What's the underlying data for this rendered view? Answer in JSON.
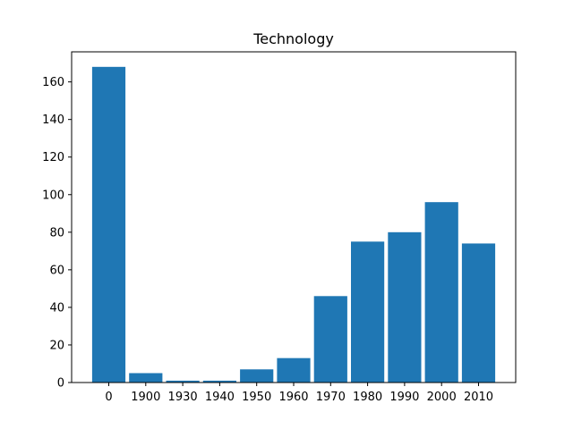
{
  "chart_data": {
    "type": "bar",
    "title": "Technology",
    "xlabel": "",
    "ylabel": "",
    "categories": [
      "0",
      "1900",
      "1930",
      "1940",
      "1950",
      "1960",
      "1970",
      "1980",
      "1990",
      "2000",
      "2010"
    ],
    "values": [
      168,
      5,
      1,
      1,
      7,
      13,
      46,
      75,
      80,
      96,
      74
    ],
    "ylim": [
      0,
      176
    ],
    "yticks": [
      0,
      20,
      40,
      60,
      80,
      100,
      120,
      140,
      160
    ],
    "grid": false,
    "legend": "none",
    "bar_color": "#1f77b4"
  }
}
